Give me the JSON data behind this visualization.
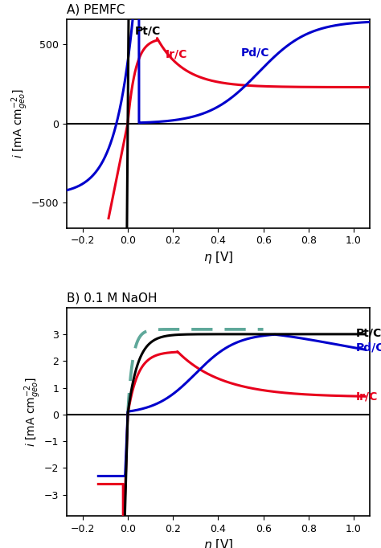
{
  "panel_A_title": "A) PEMFC",
  "panel_B_title": "B) 0.1 M NaOH",
  "xlabel": "$\\eta$ [V]",
  "ylabel": "$i$ [mA cm$^{-2}_{geo}$]",
  "panel_A_xlim": [
    -0.27,
    1.07
  ],
  "panel_A_ylim": [
    -660,
    660
  ],
  "panel_B_xlim": [
    -0.27,
    1.07
  ],
  "panel_B_ylim": [
    -3.8,
    4.0
  ],
  "panel_A_yticks": [
    -500,
    0,
    500
  ],
  "panel_B_yticks": [
    -3,
    -2,
    -1,
    0,
    1,
    2,
    3
  ],
  "xticks": [
    -0.2,
    0.0,
    0.2,
    0.4,
    0.6,
    0.8,
    1.0
  ],
  "colors": {
    "Pt": "#000000",
    "Ir": "#e8001c",
    "Pd": "#0000cc",
    "dashed": "#5fa89a"
  },
  "linewidth": 2.2
}
